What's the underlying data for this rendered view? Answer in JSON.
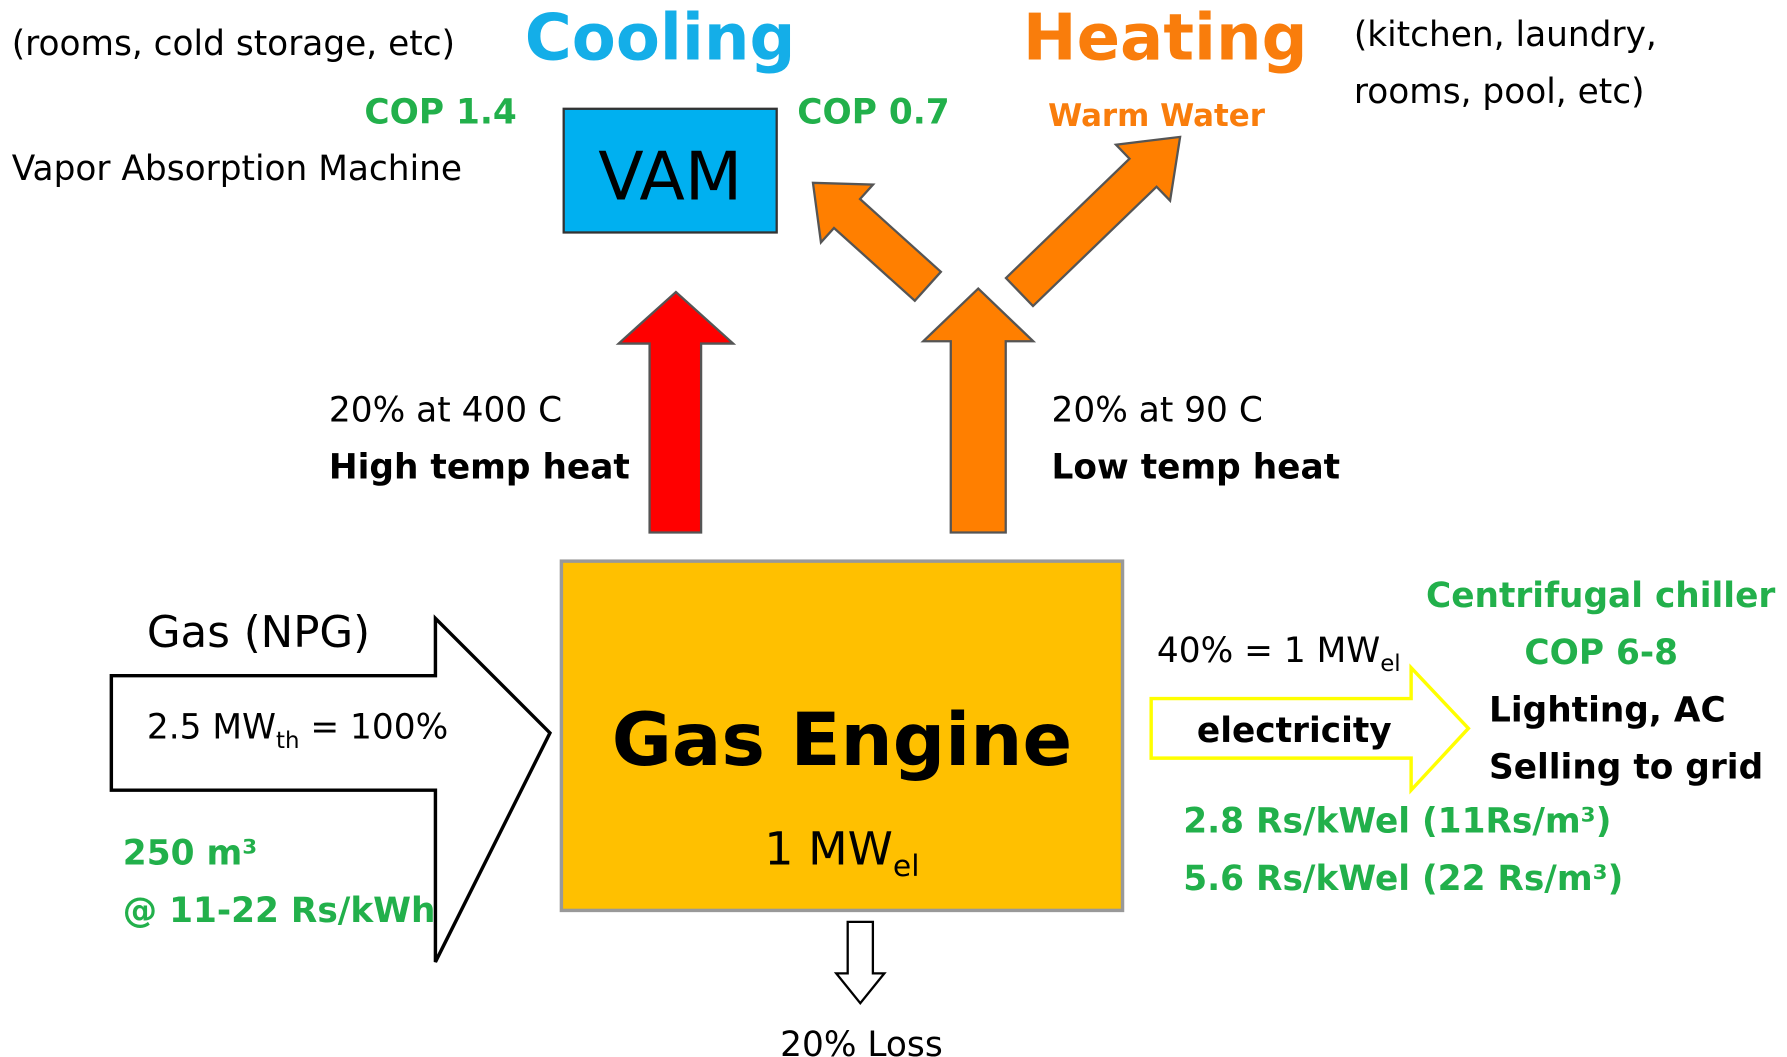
{
  "cooling": {
    "title": "Cooling",
    "note": "(rooms, cold storage, etc)"
  },
  "heating": {
    "title": "Heating",
    "note_lines": [
      "(kitchen, laundry,",
      "rooms, pool, etc)"
    ],
    "warm_water": "Warm Water"
  },
  "vam": {
    "label": "VAM",
    "name": "Vapor Absorption Machine",
    "cop_in": "COP 1.4",
    "cop_out": "COP 0.7"
  },
  "high_heat": {
    "line1": "20% at 400 C",
    "line2": "High temp heat"
  },
  "low_heat": {
    "line1": "20% at 90 C",
    "line2": "Low temp heat"
  },
  "gas": {
    "label": "Gas (NPG)",
    "power": [
      "2.5 MW",
      "th",
      " = 100%"
    ],
    "volume": "250 m³",
    "price": "@ 11-22 Rs/kWh"
  },
  "engine": {
    "label": "Gas Engine",
    "output": [
      "1 MW",
      "el"
    ]
  },
  "electricity": {
    "share": [
      "40%  = 1 MW",
      "el"
    ],
    "label": "electricity",
    "chiller": "Centrifugal chiller",
    "chiller_cop": "COP 6-8",
    "uses": [
      "Lighting, AC",
      "Selling to grid"
    ],
    "prices": [
      "2.8 Rs/kWel (11Rs/m³)",
      "5.6 Rs/kWel (22 Rs/m³)"
    ]
  },
  "loss": "20% Loss"
}
